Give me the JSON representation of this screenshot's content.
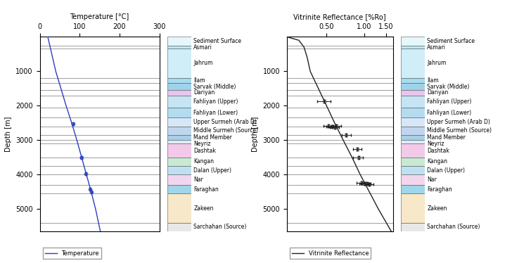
{
  "formations": {
    "names": [
      "Sediment Surface",
      "Asmari",
      "Jahrum",
      "Ilam",
      "Sarvak (Middle)",
      "Dariyan",
      "Fahliyan (Upper)",
      "Fahliyan (Lower)",
      "Upper Surmeh (Arab D)",
      "Middle Surmeh (Source)",
      "Mand Member",
      "Neyriz",
      "Dashtak",
      "Kangan",
      "Dalan (Upper)",
      "Nar",
      "Faraghan",
      "Zakeen",
      "Sarchahan (Source)"
    ],
    "tops": [
      0,
      250,
      330,
      1200,
      1350,
      1550,
      1700,
      2050,
      2350,
      2600,
      2850,
      3000,
      3100,
      3500,
      3750,
      4000,
      4300,
      4550,
      5400
    ],
    "colors": [
      "#e6f7fb",
      "#bfe6f2",
      "#cfeef8",
      "#a8dcef",
      "#9fd3ea",
      "#e7c6ee",
      "#c6e4f4",
      "#b3dcf0",
      "#d6e8f7",
      "#c0d6ee",
      "#a9cfe8",
      "#dcecf7",
      "#f3c9ea",
      "#c8ead2",
      "#bfe0f2",
      "#f2d6ee",
      "#9fd6ea",
      "#f6e8c8",
      "#e8e8e8"
    ]
  },
  "chart_data": [
    {
      "type": "line",
      "x_label": "Temperature [°C]",
      "y_label": "Depth [m]",
      "xlim": [
        0,
        300
      ],
      "xticks": [
        0,
        100,
        200,
        300
      ],
      "ylim": [
        5650,
        0
      ],
      "yticks": [
        1000,
        2000,
        3000,
        4000,
        5000
      ],
      "legend": "lower left",
      "series": [
        {
          "name": "Temperature",
          "type": "line",
          "color": "#2b3fbf",
          "line_style": "solid",
          "x": [
            20,
            30,
            40,
            53,
            66,
            80,
            93,
            105,
            117,
            129,
            140,
            152
          ],
          "y": [
            0,
            500,
            1000,
            1500,
            2000,
            2500,
            3000,
            3500,
            4000,
            4500,
            5000,
            5650
          ]
        },
        {
          "type": "scatter",
          "color": "#2b3fbf",
          "marker": "plus",
          "x": [
            83,
            104,
            116,
            126,
            130
          ],
          "y": [
            2520,
            3500,
            3980,
            4420,
            4500
          ],
          "x_error": [
            2,
            2,
            2,
            2,
            2
          ],
          "y_error": [
            40,
            40,
            40,
            40,
            40
          ]
        }
      ]
    },
    {
      "type": "line",
      "log": "x",
      "x_label": "Vitrinite Reflectance [%Ro]",
      "y_label": "Depth [m]",
      "xlim": [
        0.24,
        1.7
      ],
      "xticks": [
        {
          "value": 0.5,
          "label": "0.50"
        },
        {
          "value": 1.0,
          "label": "1.00"
        },
        {
          "value": 1.5,
          "label": "1.50"
        }
      ],
      "ylim": [
        5650,
        0
      ],
      "yticks": [
        1000,
        2000,
        3000,
        4000,
        5000
      ],
      "legend": "lower left",
      "series": [
        {
          "name": "Vitrinite Reflectance",
          "type": "line",
          "color": "#222222",
          "line_style": "solid",
          "x": [
            0.24,
            0.3,
            0.33,
            0.35,
            0.37,
            0.43,
            0.5,
            0.58,
            0.68,
            0.8,
            0.93,
            1.1,
            1.3,
            1.65
          ],
          "y": [
            0,
            100,
            300,
            600,
            1000,
            1500,
            2000,
            2500,
            3000,
            3500,
            4000,
            4500,
            5000,
            5650
          ]
        },
        {
          "type": "scatter",
          "color": "#222222",
          "marker": "plus",
          "x": [
            0.48,
            0.52,
            0.55,
            0.58,
            0.6,
            0.72,
            0.88,
            0.9,
            0.95,
            1.0,
            1.05,
            1.1
          ],
          "y": [
            1880,
            2580,
            2600,
            2620,
            2590,
            2850,
            3250,
            3500,
            4230,
            4260,
            4250,
            4280
          ],
          "x_error": [
            0.06,
            0.05,
            0.05,
            0.05,
            0.05,
            0.06,
            0.07,
            0.08,
            0.08,
            0.08,
            0.08,
            0.08
          ],
          "y_error": [
            40,
            40,
            40,
            40,
            40,
            40,
            40,
            40,
            40,
            40,
            40,
            40
          ]
        }
      ]
    }
  ]
}
